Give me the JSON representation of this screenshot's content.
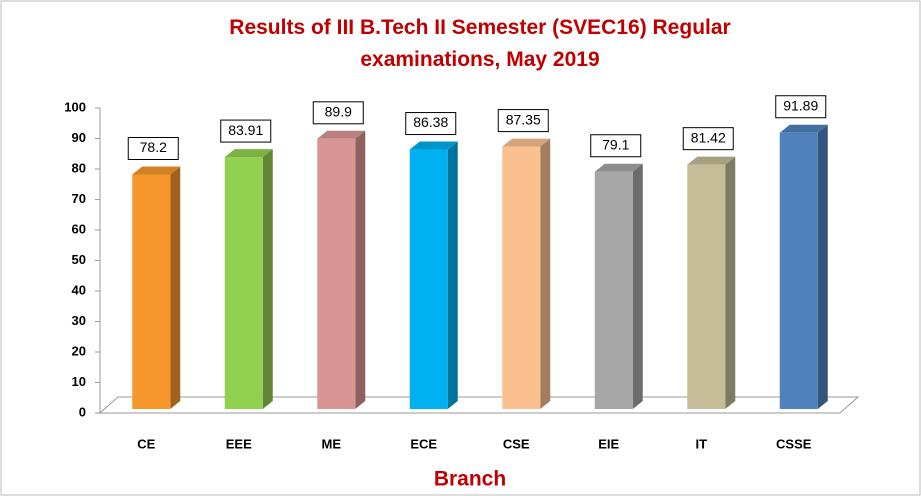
{
  "chart_data": {
    "type": "bar3d",
    "title": "Results of III B.Tech II Semester (SVEC16) Regular examinations, May 2019",
    "xlabel": "Branch",
    "categories": [
      "CE",
      "EEE",
      "ME",
      "ECE",
      "CSE",
      "EIE",
      "IT",
      "CSSE"
    ],
    "values": [
      78.2,
      83.91,
      89.9,
      86.38,
      87.35,
      79.1,
      81.42,
      91.89
    ],
    "colors": [
      "#f7962b",
      "#92d050",
      "#d99594",
      "#00b0f0",
      "#fac090",
      "#a6a6a6",
      "#c4bd97",
      "#4f81bd"
    ],
    "ylim": [
      0,
      100
    ],
    "yticks": [
      0,
      10,
      20,
      30,
      40,
      50,
      60,
      70,
      80,
      90,
      100
    ],
    "grid": false
  }
}
